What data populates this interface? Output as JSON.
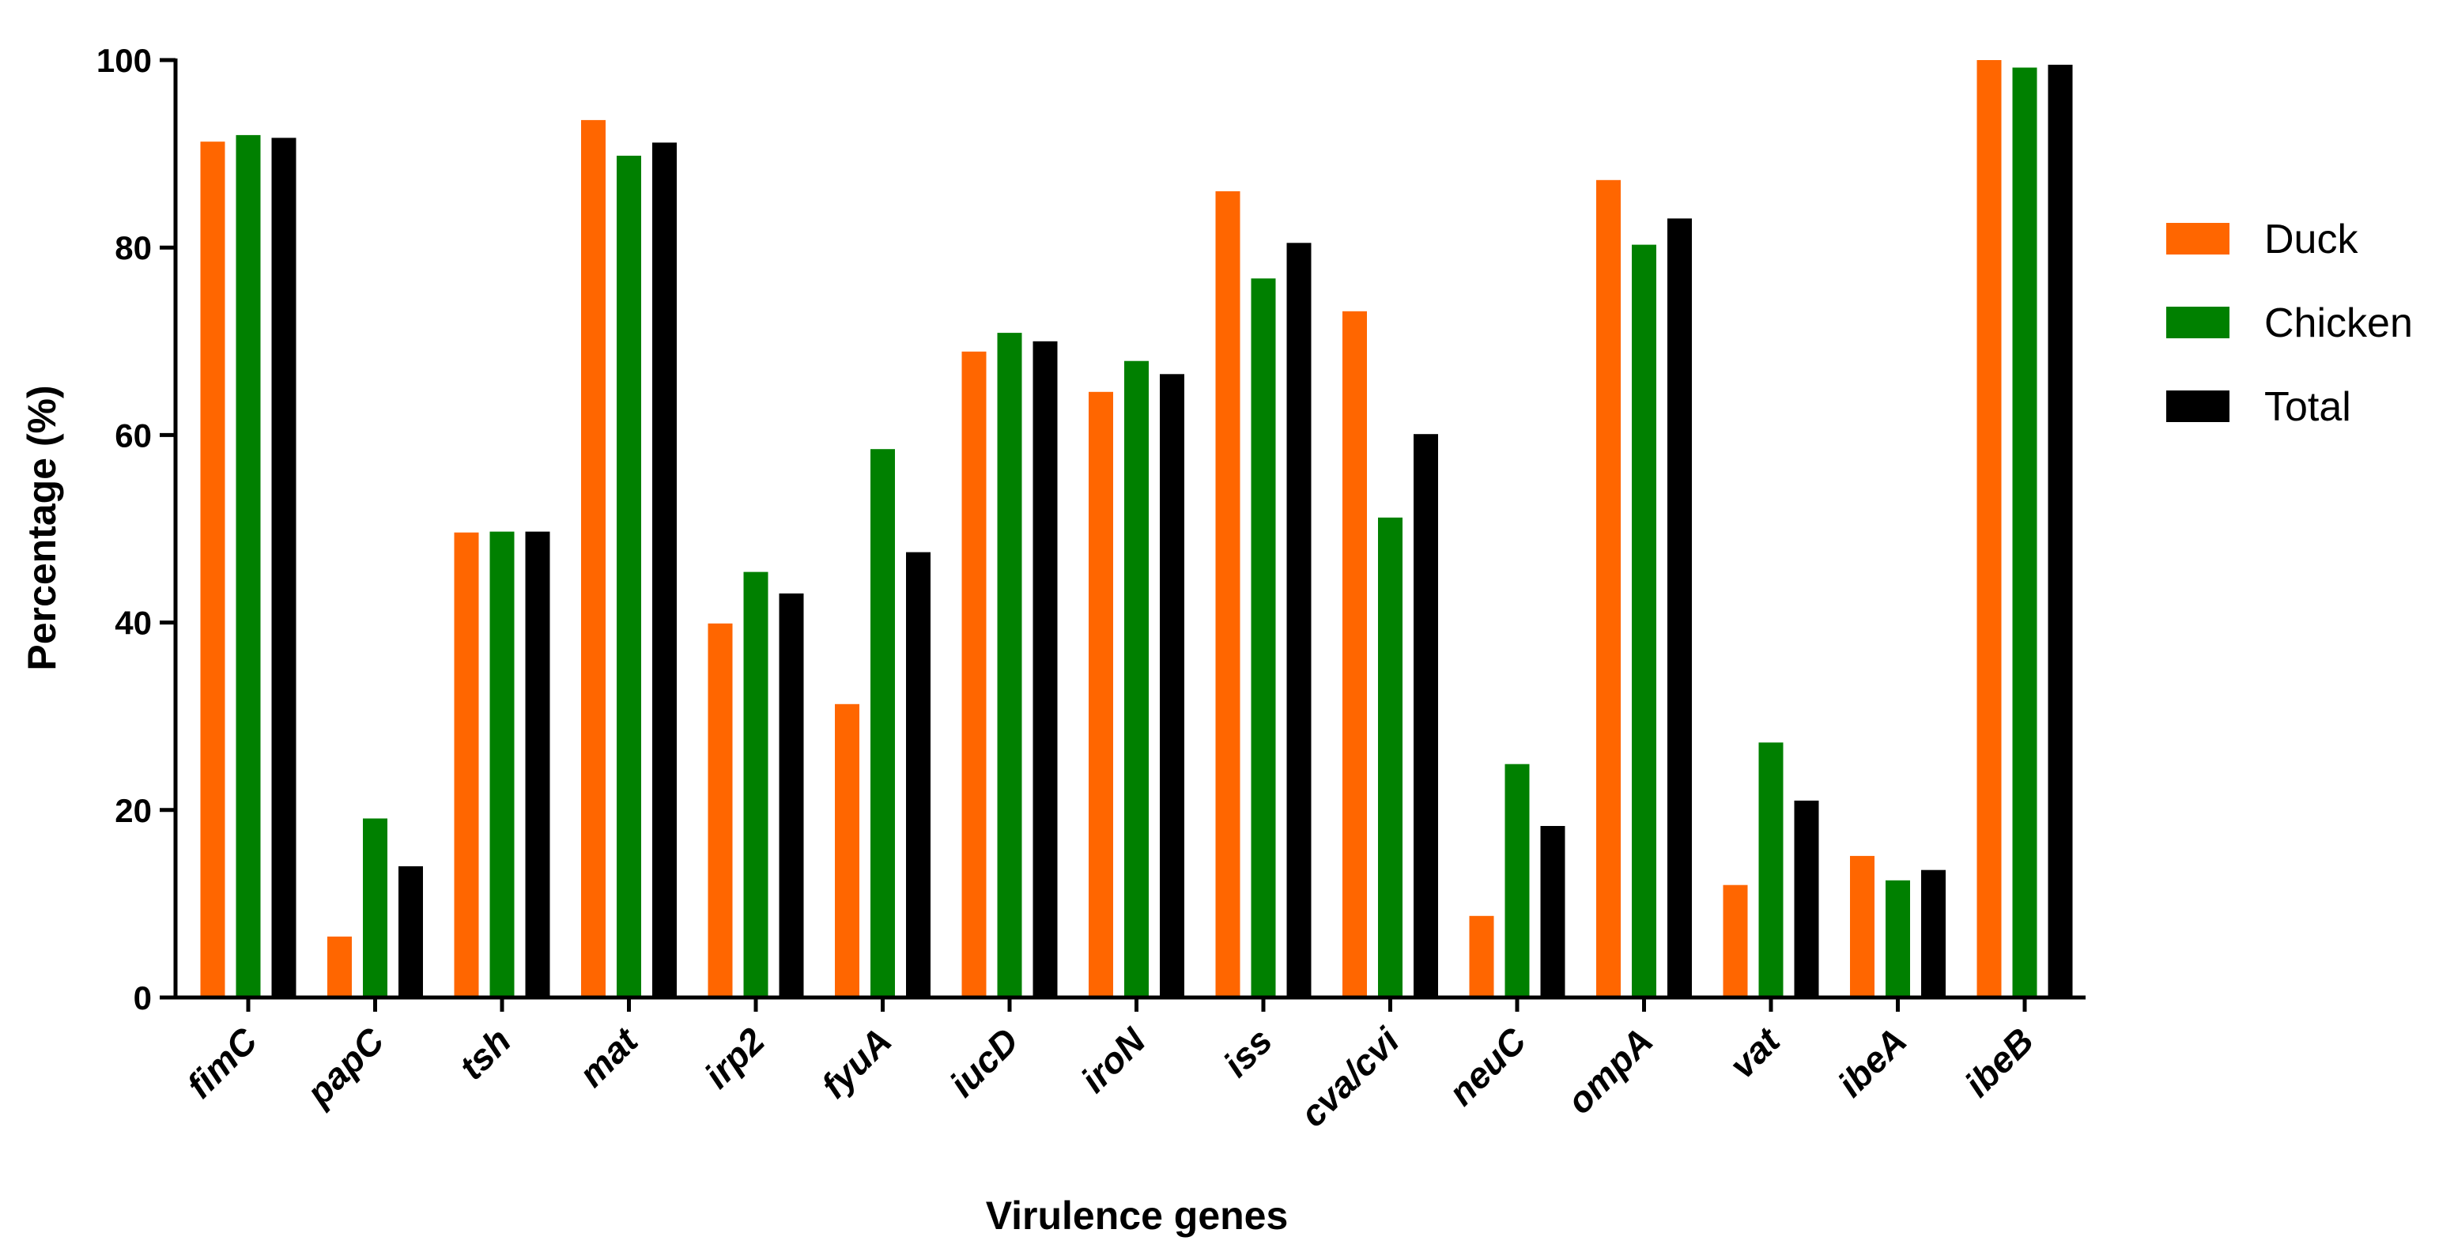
{
  "chart_data": {
    "type": "bar",
    "title": "",
    "xlabel": "Virulence genes",
    "ylabel": "Percentage (%)",
    "ylim": [
      0,
      100
    ],
    "yticks": [
      0,
      20,
      40,
      60,
      80,
      100
    ],
    "grid": false,
    "legend_position": "right",
    "categories": [
      "fimC",
      "papC",
      "tsh",
      "mat",
      "irp2",
      "fyuA",
      "iucD",
      "iroN",
      "iss",
      "cva/cvi",
      "neuC",
      "ompA",
      "vat",
      "ibeA",
      "ibeB"
    ],
    "series": [
      {
        "name": "Duck",
        "color": "#FF6600",
        "values": [
          91.3,
          6.5,
          49.6,
          93.6,
          39.9,
          31.3,
          68.9,
          64.6,
          86.0,
          73.2,
          8.7,
          87.2,
          12.0,
          15.1,
          100.0
        ]
      },
      {
        "name": "Chicken",
        "color": "#008000",
        "values": [
          92.0,
          19.1,
          49.7,
          89.8,
          45.4,
          58.5,
          70.9,
          67.9,
          76.7,
          51.2,
          24.9,
          80.3,
          27.2,
          12.5,
          99.2
        ]
      },
      {
        "name": "Total",
        "color": "#000000",
        "values": [
          91.7,
          14.0,
          49.7,
          91.2,
          43.1,
          47.5,
          70.0,
          66.5,
          80.5,
          60.1,
          18.3,
          83.1,
          21.0,
          13.6,
          99.5
        ]
      }
    ]
  }
}
